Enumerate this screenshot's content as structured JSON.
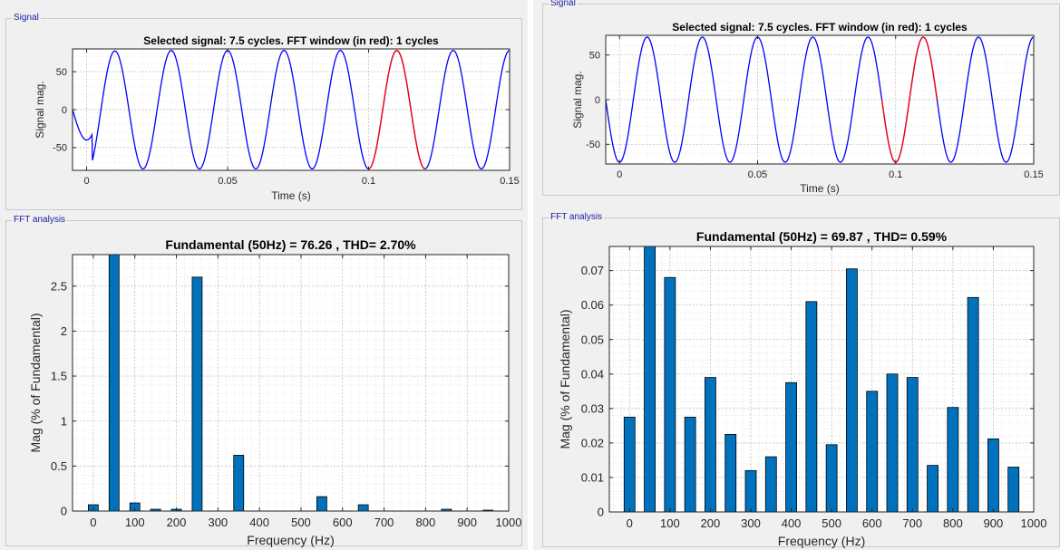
{
  "panels": [
    {
      "signal_group_title": "Signal",
      "fft_group_title": "FFT analysis"
    },
    {
      "signal_group_title": "Signal",
      "fft_group_title": "FFT analysis"
    }
  ],
  "colors": {
    "signal": "#0000ff",
    "window": "#ff0000",
    "bar": "#0072bd",
    "bar_edge": "#000000",
    "grid": "#d9d9d9"
  },
  "chart_data": [
    {
      "type": "line",
      "title": "Selected signal: 7.5 cycles. FFT window (in red): 1 cycles",
      "xlabel": "Time (s)",
      "ylabel": "Signal mag.",
      "xlim": [
        -0.005,
        0.15
      ],
      "ylim": [
        -80,
        80
      ],
      "xticks": [
        0,
        0.05,
        0.1,
        0.15
      ],
      "xtick_labels": [
        "0",
        "0.05",
        "0.1",
        "0.15"
      ],
      "yticks": [
        -50,
        0,
        50
      ],
      "ytick_labels": [
        "-50",
        "0",
        "50"
      ],
      "series": [
        {
          "kind": "signal",
          "t_start": -0.005,
          "t_end": 0.15,
          "amplitude": 78,
          "freq_hz": 50,
          "phase_deg": -90,
          "transient": true
        },
        {
          "kind": "window",
          "t_start": 0.1,
          "t_end": 0.12
        }
      ]
    },
    {
      "type": "bar",
      "title": "Fundamental (50Hz) = 76.26 , THD= 2.70%",
      "xlabel": "Frequency (Hz)",
      "ylabel": "Mag (% of Fundamental)",
      "xlim": [
        -50,
        1000
      ],
      "ylim": [
        0,
        2.85
      ],
      "xticks": [
        0,
        100,
        200,
        300,
        400,
        500,
        600,
        700,
        800,
        900,
        1000
      ],
      "yticks": [
        0,
        0.5,
        1,
        1.5,
        2,
        2.5
      ],
      "ytick_labels": [
        "0",
        "0.5",
        "1",
        "1.5",
        "2",
        "2.5"
      ],
      "x": [
        0,
        50,
        100,
        150,
        200,
        250,
        350,
        550,
        650,
        850,
        950
      ],
      "values": [
        0.07,
        2.85,
        0.09,
        0.02,
        0.02,
        2.6,
        0.62,
        0.16,
        0.07,
        0.02,
        0.01
      ]
    },
    {
      "type": "line",
      "title": "Selected signal: 7.5 cycles. FFT window (in red): 1 cycles",
      "xlabel": "Time (s)",
      "ylabel": "Signal mag.",
      "xlim": [
        -0.005,
        0.15
      ],
      "ylim": [
        -72,
        72
      ],
      "xticks": [
        0,
        0.05,
        0.1,
        0.15
      ],
      "xtick_labels": [
        "0",
        "0.05",
        "0.1",
        "0.15"
      ],
      "yticks": [
        -50,
        0,
        50
      ],
      "ytick_labels": [
        "-50",
        "0",
        "50"
      ],
      "series": [
        {
          "kind": "signal",
          "t_start": -0.005,
          "t_end": 0.15,
          "amplitude": 70,
          "freq_hz": 50,
          "phase_deg": -90,
          "transient": false
        },
        {
          "kind": "window",
          "t_start": 0.095,
          "t_end": 0.115
        }
      ]
    },
    {
      "type": "bar",
      "title": "Fundamental (50Hz) = 69.87 , THD= 0.59%",
      "xlabel": "Frequency (Hz)",
      "ylabel": "Mag (% of Fundamental)",
      "xlim": [
        -50,
        1000
      ],
      "ylim": [
        0,
        0.077
      ],
      "xticks": [
        0,
        100,
        200,
        300,
        400,
        500,
        600,
        700,
        800,
        900,
        1000
      ],
      "yticks": [
        0,
        0.01,
        0.02,
        0.03,
        0.04,
        0.05,
        0.06,
        0.07
      ],
      "ytick_labels": [
        "0",
        "0.01",
        "0.02",
        "0.03",
        "0.04",
        "0.05",
        "0.06",
        "0.07"
      ],
      "x": [
        0,
        50,
        100,
        150,
        200,
        250,
        300,
        350,
        400,
        450,
        500,
        550,
        600,
        650,
        700,
        750,
        800,
        850,
        900,
        950
      ],
      "values": [
        0.0275,
        0.077,
        0.068,
        0.0275,
        0.039,
        0.0225,
        0.012,
        0.016,
        0.0375,
        0.061,
        0.0195,
        0.0705,
        0.035,
        0.04,
        0.039,
        0.0135,
        0.0303,
        0.0622,
        0.0212,
        0.013
      ]
    }
  ]
}
